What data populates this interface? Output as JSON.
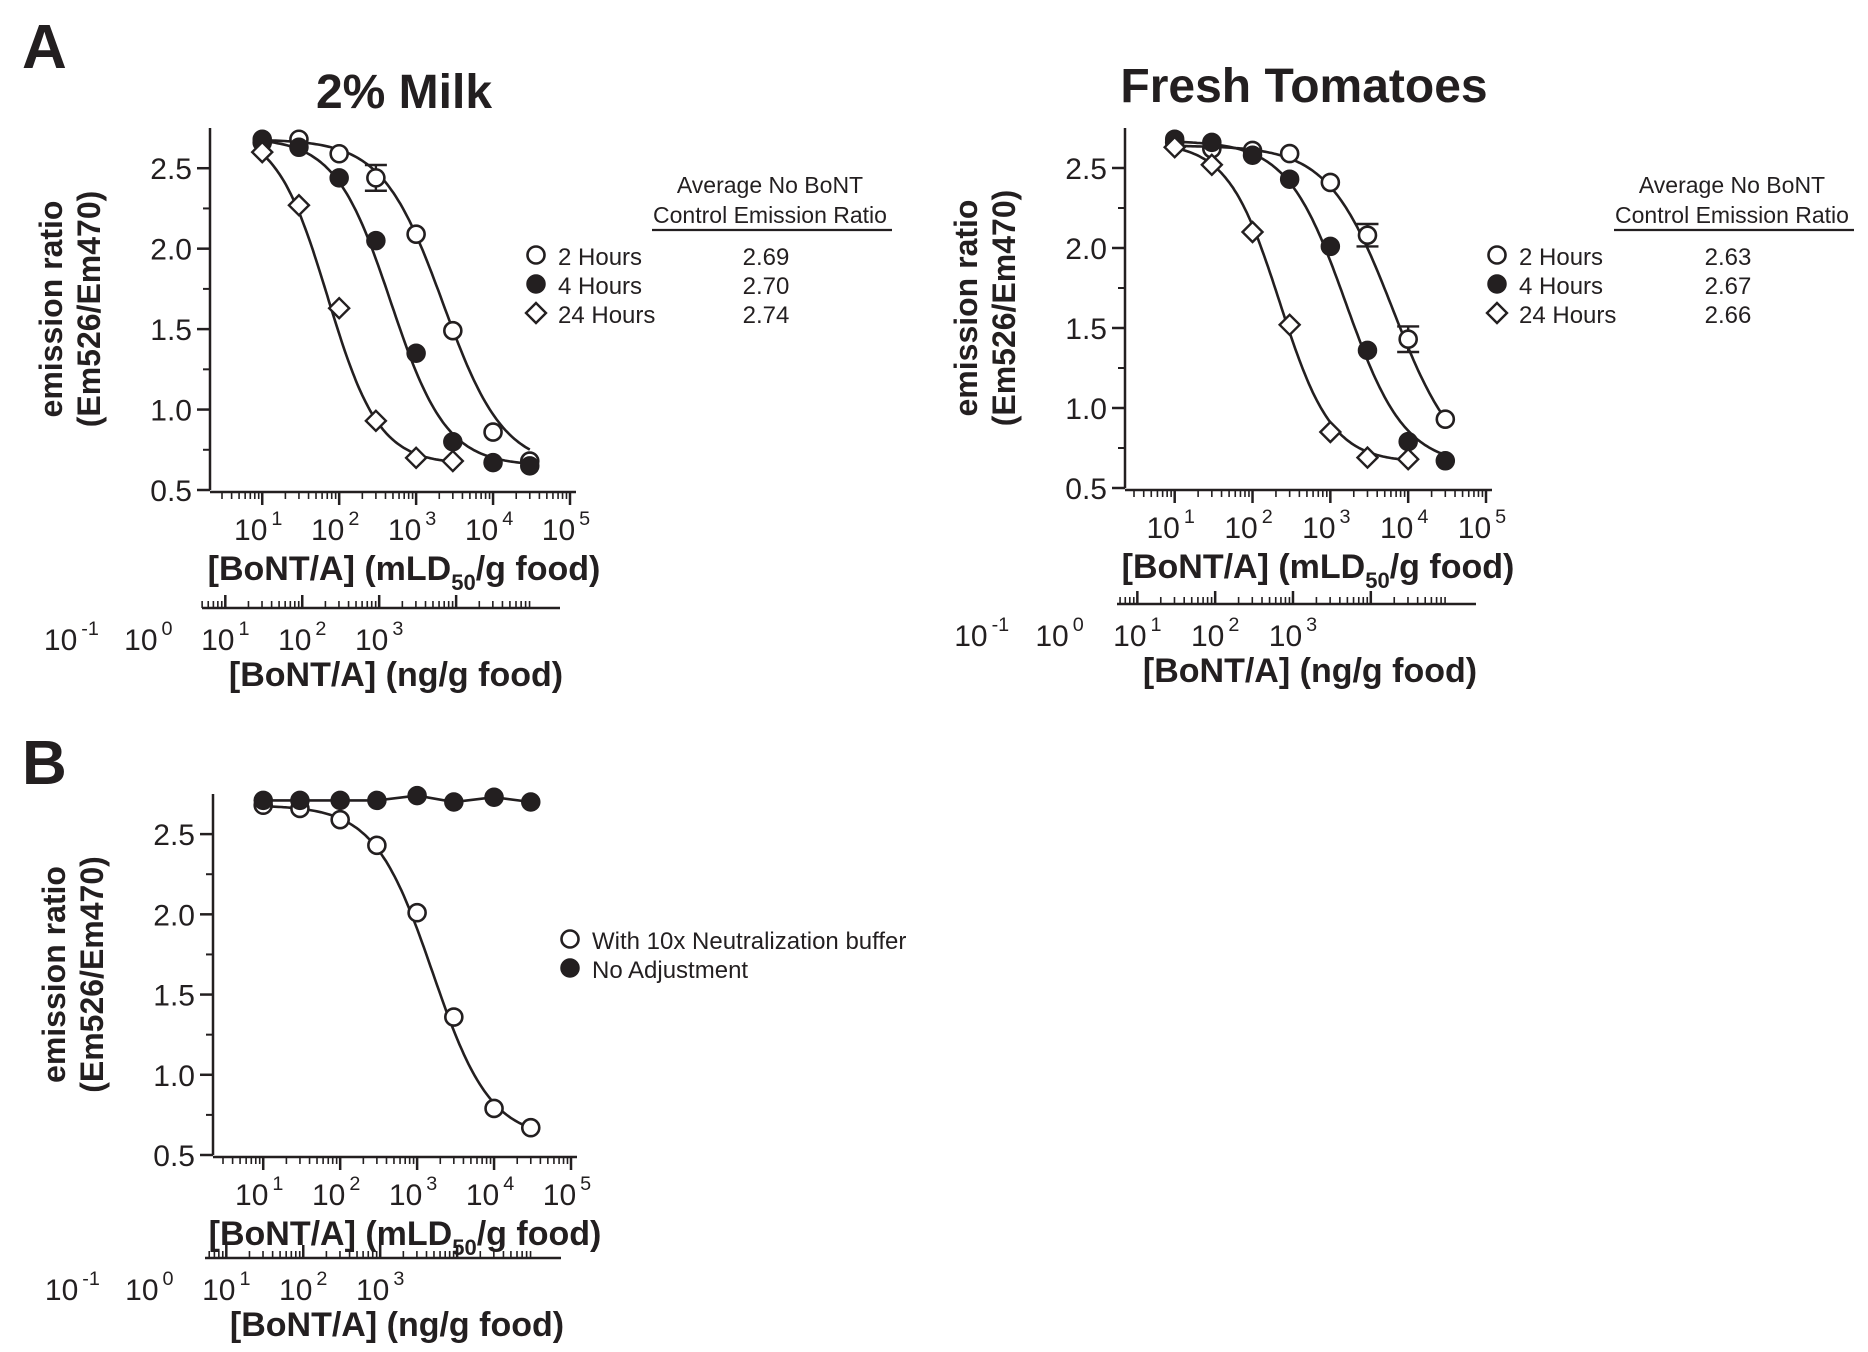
{
  "panel_letters": [
    "A",
    "B"
  ],
  "chart_data": [
    {
      "id": "milk",
      "panel": "A",
      "type": "scatter",
      "title": "2% Milk",
      "ylabel_line1": "emission ratio",
      "ylabel_line2": "(Em526/Em470)",
      "xlabel": "[BoNT/A] (mLD50/g food)",
      "xlabel_parts": [
        "[BoNT/A] (mLD",
        "50",
        "/g food)"
      ],
      "x2label": "[BoNT/A] (ng/g food)",
      "xscale": "log",
      "xlim": [
        3,
        100000
      ],
      "ylim": [
        0.5,
        2.75
      ],
      "yticks": [
        "0.5",
        "1.0",
        "1.5",
        "2.0",
        "2.5"
      ],
      "xtick_labels": [
        [
          "10",
          "1"
        ],
        [
          "10",
          "2"
        ],
        [
          "10",
          "3"
        ],
        [
          "10",
          "4"
        ],
        [
          "10",
          "5"
        ]
      ],
      "x2tick_labels": [
        [
          "10",
          "-1"
        ],
        [
          "10",
          "0"
        ],
        [
          "10",
          "1"
        ],
        [
          "10",
          "2"
        ],
        [
          "10",
          "3"
        ]
      ],
      "x2_offset_decades": 1.48,
      "legend": {
        "placement": "right",
        "entries": [
          {
            "marker": "open-circle",
            "label": "2 Hours"
          },
          {
            "marker": "filled-circle",
            "label": "4 Hours"
          },
          {
            "marker": "open-diamond",
            "label": "24 Hours"
          }
        ],
        "table_header": [
          "Average No BoNT",
          "Control Emission Ratio"
        ],
        "table_values": [
          "2.69",
          "2.70",
          "2.74"
        ]
      },
      "series": [
        {
          "name": "2 Hours",
          "marker": "open-circle",
          "x": [
            10,
            30,
            100,
            300,
            1000,
            3000,
            10000,
            30000
          ],
          "y": [
            2.66,
            2.68,
            2.59,
            2.44,
            2.09,
            1.49,
            0.86,
            0.68
          ],
          "errors": [
            {
              "x": 300,
              "y": 2.44,
              "err": 0.08
            }
          ],
          "fit": {
            "top": 2.68,
            "bottom": 0.64,
            "logEC50": 3.35,
            "hill": 1.1
          }
        },
        {
          "name": "4 Hours",
          "marker": "filled-circle",
          "x": [
            10,
            30,
            100,
            300,
            1000,
            3000,
            10000,
            30000
          ],
          "y": [
            2.68,
            2.63,
            2.44,
            2.05,
            1.35,
            0.8,
            0.67,
            0.65
          ],
          "fit": {
            "top": 2.69,
            "bottom": 0.65,
            "logEC50": 2.67,
            "hill": 1.2
          }
        },
        {
          "name": "24 Hours",
          "marker": "open-diamond",
          "x": [
            10,
            30,
            100,
            300,
            1000,
            3000
          ],
          "y": [
            2.6,
            2.27,
            1.63,
            0.93,
            0.7,
            0.68
          ],
          "fit": {
            "top": 2.74,
            "bottom": 0.66,
            "logEC50": 1.85,
            "hill": 1.3
          }
        }
      ]
    },
    {
      "id": "tomato",
      "panel": "A",
      "type": "scatter",
      "title": "Fresh Tomatoes",
      "ylabel_line1": "emission ratio",
      "ylabel_line2": "(Em526/Em470)",
      "xlabel": "[BoNT/A] (mLD50/g food)",
      "xlabel_parts": [
        "[BoNT/A] (mLD",
        "50",
        "/g food)"
      ],
      "x2label": "[BoNT/A] (ng/g food)",
      "xscale": "log",
      "xlim": [
        3,
        100000
      ],
      "ylim": [
        0.5,
        2.75
      ],
      "yticks": [
        "0.5",
        "1.0",
        "1.5",
        "2.0",
        "2.5"
      ],
      "xtick_labels": [
        [
          "10",
          "1"
        ],
        [
          "10",
          "2"
        ],
        [
          "10",
          "3"
        ],
        [
          "10",
          "4"
        ],
        [
          "10",
          "5"
        ]
      ],
      "x2tick_labels": [
        [
          "10",
          "-1"
        ],
        [
          "10",
          "0"
        ],
        [
          "10",
          "1"
        ],
        [
          "10",
          "2"
        ],
        [
          "10",
          "3"
        ]
      ],
      "x2_offset_decades": 1.48,
      "legend": {
        "placement": "right",
        "entries": [
          {
            "marker": "open-circle",
            "label": "2 Hours"
          },
          {
            "marker": "filled-circle",
            "label": "4 Hours"
          },
          {
            "marker": "open-diamond",
            "label": "24 Hours"
          }
        ],
        "table_header": [
          "Average No BoNT",
          "Control Emission Ratio"
        ],
        "table_values": [
          "2.63",
          "2.67",
          "2.66"
        ]
      },
      "series": [
        {
          "name": "2 Hours",
          "marker": "open-circle",
          "x": [
            10,
            30,
            100,
            300,
            1000,
            3000,
            10000,
            30000
          ],
          "y": [
            2.66,
            2.62,
            2.61,
            2.59,
            2.41,
            2.08,
            1.43,
            0.93
          ],
          "errors": [
            {
              "x": 3000,
              "y": 2.08,
              "err": 0.07
            },
            {
              "x": 10000,
              "y": 1.43,
              "err": 0.08
            }
          ],
          "fit": {
            "top": 2.64,
            "bottom": 0.6,
            "logEC50": 3.8,
            "hill": 1.05
          }
        },
        {
          "name": "4 Hours",
          "marker": "filled-circle",
          "x": [
            10,
            30,
            100,
            300,
            1000,
            3000,
            10000,
            30000
          ],
          "y": [
            2.68,
            2.66,
            2.58,
            2.43,
            2.01,
            1.36,
            0.79,
            0.67
          ],
          "fit": {
            "top": 2.67,
            "bottom": 0.64,
            "logEC50": 3.2,
            "hill": 1.15
          }
        },
        {
          "name": "24 Hours",
          "marker": "open-diamond",
          "x": [
            10,
            30,
            100,
            300,
            1000,
            3000,
            10000
          ],
          "y": [
            2.63,
            2.52,
            2.1,
            1.52,
            0.85,
            0.69,
            0.68
          ],
          "fit": {
            "top": 2.66,
            "bottom": 0.66,
            "logEC50": 2.35,
            "hill": 1.3
          }
        }
      ]
    },
    {
      "id": "adjust",
      "panel": "B",
      "type": "scatter",
      "title": "",
      "ylabel_line1": "emission ratio",
      "ylabel_line2": "(Em526/Em470)",
      "xlabel": "[BoNT/A] (mLD50/g food)",
      "xlabel_parts": [
        "[BoNT/A] (mLD",
        "50",
        "/g food)"
      ],
      "x2label": "[BoNT/A] (ng/g food)",
      "xscale": "log",
      "xlim": [
        3,
        100000
      ],
      "ylim": [
        0.5,
        2.75
      ],
      "yticks": [
        "0.5",
        "1.0",
        "1.5",
        "2.0",
        "2.5"
      ],
      "xtick_labels": [
        [
          "10",
          "1"
        ],
        [
          "10",
          "2"
        ],
        [
          "10",
          "3"
        ],
        [
          "10",
          "4"
        ],
        [
          "10",
          "5"
        ]
      ],
      "x2tick_labels": [
        [
          "10",
          "-1"
        ],
        [
          "10",
          "0"
        ],
        [
          "10",
          "1"
        ],
        [
          "10",
          "2"
        ],
        [
          "10",
          "3"
        ]
      ],
      "x2_offset_decades": 1.48,
      "legend": {
        "placement": "right",
        "entries": [
          {
            "marker": "open-circle",
            "label": "With 10x Neutralization buffer"
          },
          {
            "marker": "filled-circle",
            "label": "No Adjustment"
          }
        ]
      },
      "series": [
        {
          "name": "With 10x Neutralization buffer",
          "marker": "open-circle",
          "x": [
            10,
            30,
            100,
            300,
            1000,
            3000,
            10000,
            30000
          ],
          "y": [
            2.68,
            2.66,
            2.59,
            2.43,
            2.01,
            1.36,
            0.79,
            0.67
          ],
          "fit": {
            "top": 2.68,
            "bottom": 0.6,
            "logEC50": 3.2,
            "hill": 1.15
          }
        },
        {
          "name": "No Adjustment",
          "marker": "filled-circle",
          "x": [
            10,
            30,
            100,
            300,
            1000,
            3000,
            10000,
            30000
          ],
          "y": [
            2.71,
            2.71,
            2.71,
            2.71,
            2.74,
            2.7,
            2.73,
            2.7
          ],
          "fit": {
            "type": "connect"
          }
        }
      ]
    }
  ]
}
